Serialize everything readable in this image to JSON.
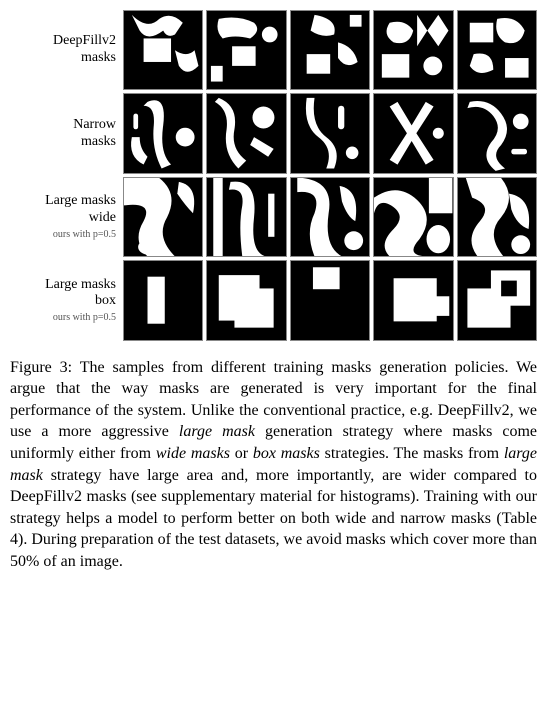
{
  "rows": [
    {
      "label_main": "DeepFillv2 masks",
      "label_sub": null,
      "cells": [
        {
          "shapes": "<rect x='25' y='35' width='35' height='30' fill='#fff'/><path d='M10 5 Q30 25 45 10 Q60 0 75 15 L65 30 Q55 35 50 25 Q30 40 20 25 Z' fill='#fff'/><path d='M65 50 Q80 60 90 50 L95 70 Q80 85 70 70 Z' fill='#fff'/>"
        },
        {
          "shapes": "<rect x='32' y='45' width='30' height='25' fill='#fff'/><path d='M15 10 Q40 5 60 15 Q70 25 55 35 Q35 30 20 35 Q10 25 15 10 Z' fill='#fff'/><circle cx='80' cy='30' r='10' fill='#fff'/><rect x='5' y='70' width='15' height='20' fill='#fff'/>"
        },
        {
          "shapes": "<rect x='20' y='55' width='30' height='25' fill='#fff'/><path d='M30 5 Q60 10 55 30 Q40 35 25 25 Z' fill='#fff'/><path d='M60 40 Q80 45 85 65 Q70 75 60 60 Z' fill='#fff'/><rect x='75' y='5' width='15' height='15' fill='#fff'/>"
        },
        {
          "shapes": "<path d='M55 5 L68 25 L82 5 L95 25 L82 45 L68 25 L55 45 Z' fill='#fff'/><path d='M20 15 Q40 10 50 25 Q45 45 25 40 Q10 30 20 15 Z' fill='#fff'/><rect x='10' y='55' width='35' height='30' fill='#fff'/><circle cx='75' cy='70' r='12' fill='#fff'/>"
        },
        {
          "shapes": "<rect x='15' y='15' width='30' height='25' fill='#fff'/><path d='M50 10 Q75 5 85 25 Q80 45 60 40 Q45 30 50 10 Z' fill='#fff'/><path d='M20 55 Q45 50 45 75 Q25 85 15 70 Z' fill='#fff'/><rect x='60' y='60' width='30' height='25' fill='#fff'/>"
        }
      ]
    },
    {
      "label_main": "Narrow masks",
      "label_sub": null,
      "cells": [
        {
          "shapes": "<path d='M30 10 Q55 0 50 40 Q45 75 60 90 L48 95 Q35 70 38 40 Q40 15 25 15 Z' fill='#fff'/><path d='M10 55 Q5 80 25 90 L30 80 Q20 70 20 55 Z' fill='#fff'/><circle cx='78' cy='55' r='12' fill='#fff'/><rect x='12' y='25' width='6' height='20' rx='3' fill='#fff'/>"
        },
        {
          "shapes": "<path d='M15 5 Q40 15 35 45 Q30 70 50 85 L40 95 Q20 75 25 45 Q28 20 10 10 Z' fill='#fff'/><circle cx='72' cy='30' r='14' fill='#fff'/><path d='M60 55 L85 70 L78 80 L55 65 Z' fill='#fff'/>"
        },
        {
          "shapes": "<path d='M20 5 L30 5 Q25 40 45 55 Q65 70 55 95 L45 95 Q55 70 35 55 Q15 40 20 5 Z' fill='#fff'/><rect x='60' y='15' width='8' height='30' rx='4' fill='#fff'/><circle cx='78' cy='75' r='8' fill='#fff'/>"
        },
        {
          "shapes": "<path d='M30 10 L48 40 L66 10 L76 16 L54 50 L76 84 L66 90 L48 60 L30 90 L20 84 L42 50 L20 16 Z' fill='#fff'/><circle cx='82' cy='50' r='7' fill='#fff'/>"
        },
        {
          "shapes": "<path d='M15 10 Q40 5 55 25 Q70 45 55 65 Q40 80 60 95 L48 98 Q28 82 42 62 Q58 45 45 28 Q32 12 12 18 Z' fill='#fff'/><circle cx='80' cy='35' r='10' fill='#fff'/><rect x='68' y='70' width='20' height='7' rx='3' fill='#fff'/>"
        }
      ]
    },
    {
      "label_main": "Large masks wide",
      "label_sub": "ours with p=0.5",
      "cells": [
        {
          "shapes": "<path d='M0 0 L45 0 Q70 20 55 50 Q40 75 65 100 L30 100 Q10 80 25 55 Q38 30 0 35 Z' fill='#fff'/><ellipse cx='32' cy='88' rx='14' ry='10' fill='#fff'/><path d='M70 5 Q95 10 88 45 Q78 35 68 20 Z' fill='#fff'/>"
        },
        {
          "shapes": "<rect x='8' y='0' width='12' height='100' fill='#fff'/><path d='M30 5 Q65 0 60 50 Q55 95 75 100 L45 100 Q40 60 45 35 Q48 12 28 15 Z' fill='#fff'/><rect x='78' y='20' width='8' height='55' fill='#fff'/>"
        },
        {
          "shapes": "<path d='M15 0 Q55 5 48 45 Q42 88 65 100 L30 100 Q18 70 30 45 Q40 15 8 18 L8 0 Z' fill='#fff'/><path d='M62 10 Q88 15 82 55 Q72 50 65 30 Z' fill='#fff'/><circle cx='80' cy='80' r='12' fill='#fff'/>"
        },
        {
          "shapes": "<path d='M0 25 Q30 5 55 28 Q78 50 58 78 Q38 100 70 100 L20 100 Q5 85 25 65 Q42 48 22 35 Q5 25 0 45 Z' fill='#fff'/><rect x='70' y='0' width='30' height='45' fill='#fff'/><ellipse cx='82' cy='78' rx='15' ry='18' fill='#fff'/>"
        },
        {
          "shapes": "<path d='M10 0 L55 0 Q75 25 55 50 Q35 72 58 100 L25 100 Q8 78 28 55 Q45 35 18 25 Z' fill='#fff'/><path d='M65 20 Q95 25 90 65 Q75 60 68 40 Z' fill='#fff'/><circle cx='80' cy='85' r='12' fill='#fff'/>"
        }
      ]
    },
    {
      "label_main": "Large masks box",
      "label_sub": "ours with p=0.5",
      "cells": [
        {
          "shapes": "<rect x='30' y='20' width='22' height='60' fill='#fff'/>"
        },
        {
          "shapes": "<rect x='15' y='18' width='52' height='58' fill='#fff'/><rect x='35' y='35' width='50' height='50' fill='#fff'/>"
        },
        {
          "shapes": "<rect x='28' y='8' width='34' height='28' fill='#fff'/>"
        },
        {
          "shapes": "<rect x='25' y='22' width='55' height='55' fill='#fff'/><rect x='58' y='45' width='38' height='25' fill='#fff'/>"
        },
        {
          "shapes": "<rect x='12' y='35' width='55' height='50' fill='#fff'/><rect x='42' y='12' width='50' height='45' fill='#fff'/><rect x='55' y='25' width='20' height='20' fill='#000'/>"
        }
      ]
    }
  ],
  "caption_parts": {
    "t1": "Figure 3: The samples from different training masks generation policies. We argue that the way masks are generated is very important for the final performance of the system. Unlike the conventional practice, e.g. DeepFillv2, we use a more aggressive ",
    "i1": "large mask",
    "t2": " generation strategy where masks come uniformly either from ",
    "i2": "wide masks",
    "t3": " or ",
    "i3": "box masks",
    "t4": " strategies. The masks from ",
    "i4": "large mask",
    "t5": " strategy have large area and, more importantly, are wider compared to DeepFillv2 masks (see supplementary material for histograms). Training with our strategy helps a model to perform better on both wide and narrow masks (Table 4). During preparation of the test datasets, we avoid masks which cover more than 50% of an image."
  },
  "svg_viewbox": "0 0 100 100",
  "colors": {
    "mask_bg": "#000000",
    "mask_fg": "#ffffff",
    "page_bg": "#ffffff",
    "border": "#888888"
  }
}
